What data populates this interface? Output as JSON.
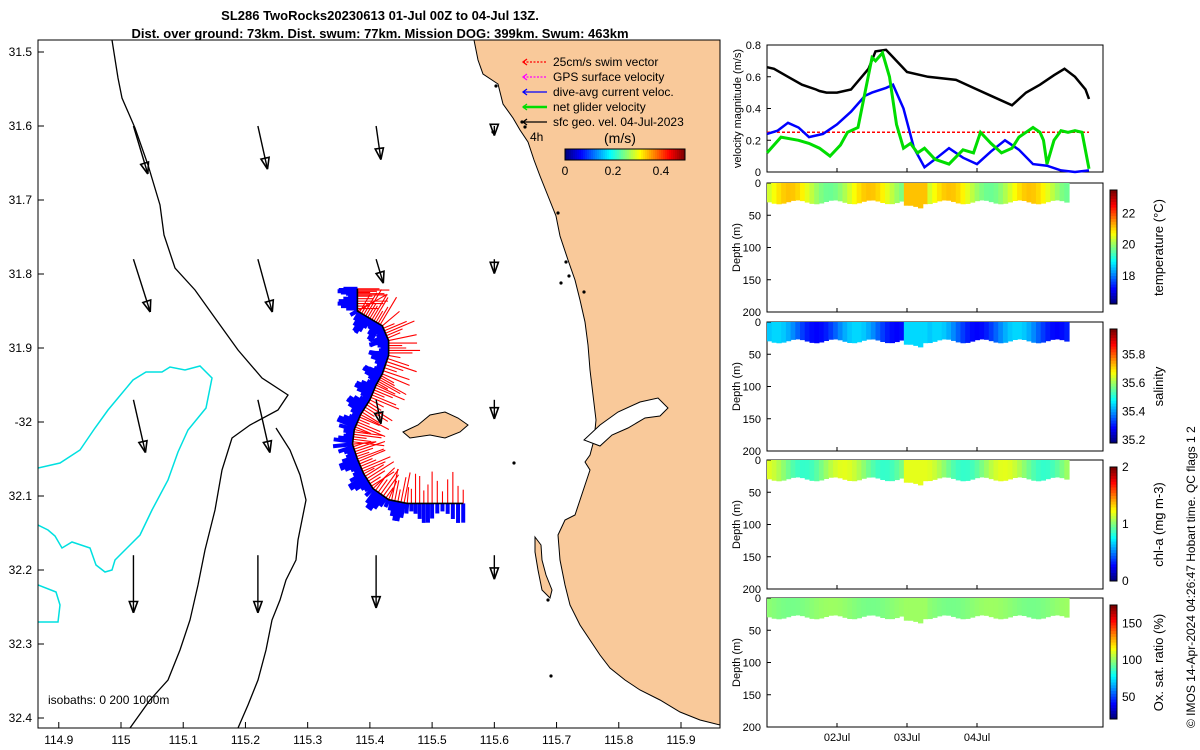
{
  "title_line1": "SL286 TwoRocks20230613 01-Jul 00Z to 04-Jul 13Z.",
  "title_line2": "Dist. over ground: 73km. Dist. swum: 77km. Mission DOG: 399km. Swum: 463km",
  "copyright": "© IMOS 14-Apr-2024 04:26:47 Hobart time. QC flags 1  2",
  "colors": {
    "land": "#f9c99a",
    "sea": "#ffffff",
    "isobath_0": "#000000",
    "isobath_200": "#000000",
    "isobath_1000": "#00e0e0",
    "swim": "#ff0000",
    "gps": "#ff00ff",
    "current": "#0000ff",
    "net": "#00dd00",
    "geo": "#000000"
  },
  "chart_data": [
    {
      "type": "map",
      "lon_ticks": [
        "114.9",
        "115",
        "115.1",
        "115.2",
        "115.3",
        "115.4",
        "115.5",
        "115.6",
        "115.7",
        "115.8",
        "115.9"
      ],
      "lat_ticks": [
        "31.5",
        "31.6",
        "31.7",
        "31.8",
        "31.9",
        "-32",
        "32.1",
        "32.2",
        "32.3",
        "32.4"
      ],
      "xlim": [
        114.85,
        115.93
      ],
      "ylim": [
        -32.41,
        -31.48
      ],
      "legend": {
        "position": "top-right",
        "items": [
          {
            "label": "25cm/s swim vector",
            "color": "#ff0000"
          },
          {
            "label": "GPS surface velocity",
            "color": "#ff00ff"
          },
          {
            "label": "dive-avg current veloc.",
            "color": "#0000ff"
          },
          {
            "label": "net glider velocity",
            "color": "#00dd00"
          },
          {
            "label": "sfc geo. vel. 04-Jul-2023",
            "color": "#000000"
          }
        ],
        "time_label": "4h",
        "colorbar_unit": "(m/s)",
        "colorbar_ticks": [
          "0",
          "0.2",
          "0.4"
        ],
        "colorbar_range": [
          0,
          0.5
        ]
      },
      "isobath_label": "isobaths: 0   200  1000m",
      "glider_track": [
        [
          115.38,
          -31.82
        ],
        [
          115.38,
          -31.83
        ],
        [
          115.38,
          -31.85
        ],
        [
          115.4,
          -31.86
        ],
        [
          115.42,
          -31.87
        ],
        [
          115.43,
          -31.89
        ],
        [
          115.43,
          -31.91
        ],
        [
          115.42,
          -31.935
        ],
        [
          115.41,
          -31.95
        ],
        [
          115.4,
          -31.97
        ],
        [
          115.385,
          -31.99
        ],
        [
          115.375,
          -32.01
        ],
        [
          115.372,
          -32.03
        ],
        [
          115.38,
          -32.05
        ],
        [
          115.39,
          -32.07
        ],
        [
          115.405,
          -32.09
        ],
        [
          115.43,
          -32.105
        ],
        [
          115.46,
          -32.11
        ],
        [
          115.5,
          -32.11
        ],
        [
          115.55,
          -32.11
        ]
      ],
      "geo_velocity_grid": {
        "lons": [
          115.02,
          115.22,
          115.41,
          115.6
        ],
        "lats": [
          -31.6,
          -31.78,
          -31.97,
          -32.18
        ],
        "u": [
          [
            0.03,
            0.02,
            0.01,
            0.0
          ],
          [
            0.035,
            0.03,
            0.015,
            0.0
          ],
          [
            0.025,
            0.025,
            0.01,
            0.0
          ],
          [
            0.0,
            0.0,
            0.0,
            0.0
          ]
        ],
        "v": [
          [
            -0.1,
            -0.09,
            -0.07,
            -0.02
          ],
          [
            -0.11,
            -0.11,
            -0.05,
            -0.03
          ],
          [
            -0.11,
            -0.11,
            -0.05,
            -0.04
          ],
          [
            -0.12,
            -0.12,
            -0.11,
            -0.05
          ]
        ]
      }
    },
    {
      "type": "line",
      "ylabel": "velocity magnitude (m/s)",
      "ylim": [
        0,
        0.8
      ],
      "yticks": [
        "0",
        "0.2",
        "0.4",
        "0.6",
        "0.8"
      ],
      "series": [
        {
          "color": "#000000",
          "dashed": false,
          "x": [
            0,
            0.1,
            0.3,
            0.5,
            0.7,
            0.75,
            0.85,
            1.0,
            1.2,
            1.45,
            1.55,
            1.7,
            1.85,
            2.0,
            2.3,
            2.7,
            2.95,
            3.2,
            3.5,
            3.7,
            3.9,
            4.1,
            4.25,
            4.4,
            4.55,
            4.6
          ],
          "values": [
            0.66,
            0.65,
            0.6,
            0.55,
            0.52,
            0.51,
            0.5,
            0.5,
            0.52,
            0.65,
            0.76,
            0.77,
            0.7,
            0.63,
            0.6,
            0.58,
            0.53,
            0.48,
            0.42,
            0.5,
            0.55,
            0.61,
            0.65,
            0.6,
            0.52,
            0.46
          ]
        },
        {
          "color": "#ff0000",
          "dashed": true,
          "x": [
            0,
            4.6
          ],
          "values": [
            0.25,
            0.25
          ]
        },
        {
          "color": "#0000ff",
          "dashed": false,
          "x": [
            0,
            0.15,
            0.3,
            0.45,
            0.6,
            0.8,
            1.0,
            1.2,
            1.4,
            1.5,
            1.7,
            1.8,
            1.95,
            2.1,
            2.25,
            2.4,
            2.6,
            2.8,
            3.0,
            3.2,
            3.4,
            3.6,
            3.8,
            4.0,
            4.2,
            4.4,
            4.6
          ],
          "values": [
            0.24,
            0.26,
            0.31,
            0.28,
            0.22,
            0.24,
            0.3,
            0.38,
            0.48,
            0.5,
            0.53,
            0.55,
            0.4,
            0.15,
            0.03,
            0.08,
            0.15,
            0.09,
            0.05,
            0.13,
            0.2,
            0.14,
            0.05,
            0.04,
            0.01,
            0.0,
            0.01
          ]
        },
        {
          "color": "#00dd00",
          "dashed": false,
          "x": [
            0,
            0.2,
            0.45,
            0.6,
            0.75,
            0.9,
            1.05,
            1.15,
            1.3,
            1.4,
            1.5,
            1.55,
            1.65,
            1.75,
            1.85,
            1.95,
            2.05,
            2.15,
            2.25,
            2.4,
            2.6,
            2.8,
            2.95,
            3.05,
            3.2,
            3.35,
            3.5,
            3.6,
            3.7,
            3.8,
            3.9,
            3.95,
            4.0,
            4.1,
            4.2,
            4.3,
            4.4,
            4.5,
            4.6
          ],
          "values": [
            0.12,
            0.22,
            0.2,
            0.18,
            0.15,
            0.1,
            0.17,
            0.25,
            0.28,
            0.5,
            0.72,
            0.7,
            0.75,
            0.6,
            0.3,
            0.15,
            0.18,
            0.12,
            0.15,
            0.08,
            0.05,
            0.14,
            0.12,
            0.25,
            0.18,
            0.12,
            0.15,
            0.22,
            0.25,
            0.28,
            0.25,
            0.2,
            0.05,
            0.2,
            0.26,
            0.25,
            0.26,
            0.25,
            0.02
          ]
        }
      ]
    },
    {
      "type": "heatmap",
      "ylabel": "Depth (m)",
      "yticks": [
        "0",
        "50",
        "100",
        "150",
        "200"
      ],
      "ylim": [
        0,
        200
      ],
      "colorbar_label": "temperature (°C)",
      "colorbar_ticks": [
        "18",
        "20",
        "22"
      ],
      "colorbar_range": [
        16.2,
        23.5
      ],
      "base_depth": 30,
      "low_value": 19.7,
      "high_value": 21.2
    },
    {
      "type": "heatmap",
      "ylabel": "Depth (m)",
      "yticks": [
        "0",
        "50",
        "100",
        "150",
        "200"
      ],
      "ylim": [
        0,
        200
      ],
      "colorbar_label": "salinity",
      "colorbar_ticks": [
        "35.2",
        "35.4",
        "35.6",
        "35.8"
      ],
      "colorbar_range": [
        35.18,
        35.98
      ],
      "base_depth": 30,
      "low_value": 35.28,
      "high_value": 35.45
    },
    {
      "type": "heatmap",
      "ylabel": "Depth (m)",
      "yticks": [
        "0",
        "50",
        "100",
        "150",
        "200"
      ],
      "ylim": [
        0,
        200
      ],
      "colorbar_label": "chl-a (mg m-3)",
      "colorbar_ticks": [
        "0",
        "1",
        "2"
      ],
      "colorbar_range": [
        0,
        2
      ],
      "base_depth": 30,
      "low_value": 0.85,
      "high_value": 1.2
    },
    {
      "type": "heatmap",
      "ylabel": "Depth (m)",
      "yticks": [
        "0",
        "50",
        "100",
        "150",
        "200"
      ],
      "ylim": [
        0,
        200
      ],
      "colorbar_label": "Ox. sat. ratio (%)",
      "colorbar_ticks": [
        "50",
        "100",
        "150"
      ],
      "colorbar_range": [
        20,
        175
      ],
      "base_depth": 30,
      "low_value": 96,
      "high_value": 102,
      "xticks": [
        "02Jul",
        "03Jul",
        "04Jul"
      ],
      "xtick_days": [
        1,
        2,
        3
      ],
      "xlim_days": [
        0,
        4.8
      ]
    }
  ]
}
